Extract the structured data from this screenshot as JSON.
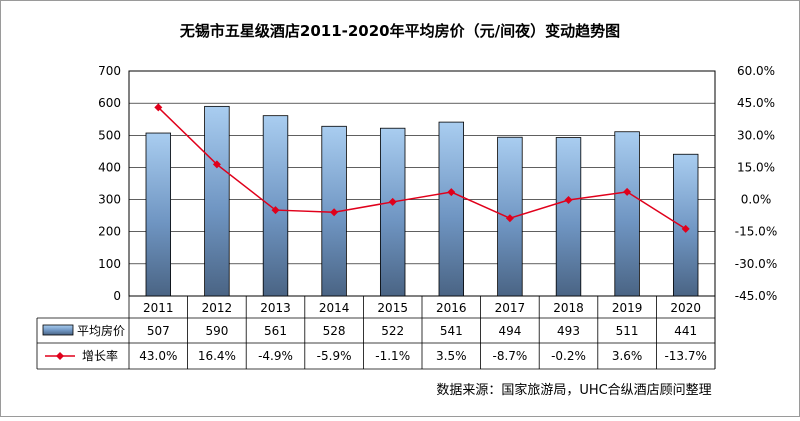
{
  "chart_data": {
    "type": "bar",
    "title": "无锡市五星级酒店2011-2020年平均房价（元/间夜）变动趋势图",
    "categories": [
      "2011",
      "2012",
      "2013",
      "2014",
      "2015",
      "2016",
      "2017",
      "2018",
      "2019",
      "2020"
    ],
    "y_left": {
      "range": [
        0,
        700
      ],
      "ticks": [
        "0",
        "100",
        "200",
        "300",
        "400",
        "500",
        "600",
        "700"
      ]
    },
    "y_right": {
      "range": [
        -45,
        60
      ],
      "ticks": [
        "60.0%",
        "45.0%",
        "30.0%",
        "15.0%",
        "0.0%",
        "-15.0%",
        "-30.0%",
        "-45.0%"
      ]
    },
    "grid": true,
    "legend": "data-table",
    "series": [
      {
        "name": "平均房价",
        "type": "bar",
        "axis": "left",
        "color": "#4f79a8",
        "values": [
          507,
          590,
          561,
          528,
          522,
          541,
          494,
          493,
          511,
          441
        ],
        "labels": [
          "507",
          "590",
          "561",
          "528",
          "522",
          "541",
          "494",
          "493",
          "511",
          "441"
        ]
      },
      {
        "name": "增长率",
        "type": "line",
        "axis": "right",
        "color": "#e0001b",
        "values": [
          43.0,
          16.4,
          -4.9,
          -5.9,
          -1.1,
          3.5,
          -8.7,
          -0.2,
          3.6,
          -13.7
        ],
        "labels": [
          "43.0%",
          "16.4%",
          "-4.9%",
          "-5.9%",
          "-1.1%",
          "3.5%",
          "-8.7%",
          "-0.2%",
          "3.6%",
          "-13.7%"
        ]
      }
    ],
    "source": "数据来源：国家旅游局，UHC合纵酒店顾问整理"
  }
}
